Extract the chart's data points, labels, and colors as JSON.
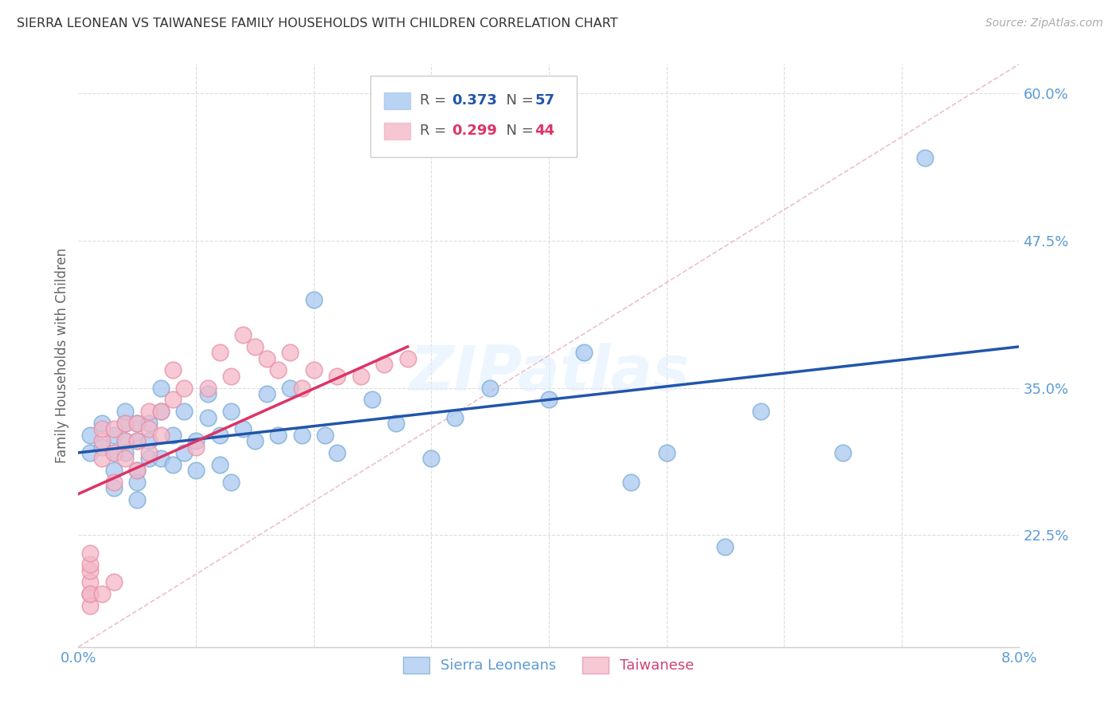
{
  "title": "SIERRA LEONEAN VS TAIWANESE FAMILY HOUSEHOLDS WITH CHILDREN CORRELATION CHART",
  "source": "Source: ZipAtlas.com",
  "ylabel": "Family Households with Children",
  "xlim": [
    0.0,
    0.08
  ],
  "ylim": [
    0.13,
    0.625
  ],
  "yticks_right": [
    0.225,
    0.35,
    0.475,
    0.6
  ],
  "ytick_labels_right": [
    "22.5%",
    "35.0%",
    "47.5%",
    "60.0%"
  ],
  "axis_color": "#5b9bd5",
  "blue_color": "#a8c8f0",
  "pink_color": "#f4b8c8",
  "blue_edge_color": "#7badd4",
  "pink_edge_color": "#e890a8",
  "blue_line_color": "#2255aa",
  "pink_line_color": "#dd3366",
  "grid_color": "#dddddd",
  "watermark": "ZIPatlas",
  "sierra_x": [
    0.001,
    0.001,
    0.002,
    0.002,
    0.003,
    0.003,
    0.003,
    0.003,
    0.004,
    0.004,
    0.004,
    0.004,
    0.005,
    0.005,
    0.005,
    0.005,
    0.005,
    0.006,
    0.006,
    0.006,
    0.007,
    0.007,
    0.007,
    0.008,
    0.008,
    0.009,
    0.009,
    0.01,
    0.01,
    0.011,
    0.011,
    0.012,
    0.012,
    0.013,
    0.013,
    0.014,
    0.015,
    0.016,
    0.017,
    0.018,
    0.019,
    0.02,
    0.021,
    0.022,
    0.025,
    0.027,
    0.03,
    0.032,
    0.035,
    0.04,
    0.043,
    0.047,
    0.05,
    0.055,
    0.058,
    0.065,
    0.072
  ],
  "sierra_y": [
    0.295,
    0.31,
    0.3,
    0.32,
    0.31,
    0.295,
    0.28,
    0.265,
    0.305,
    0.32,
    0.33,
    0.295,
    0.305,
    0.32,
    0.28,
    0.27,
    0.255,
    0.305,
    0.32,
    0.29,
    0.33,
    0.35,
    0.29,
    0.31,
    0.285,
    0.33,
    0.295,
    0.305,
    0.28,
    0.325,
    0.345,
    0.31,
    0.285,
    0.33,
    0.27,
    0.315,
    0.305,
    0.345,
    0.31,
    0.35,
    0.31,
    0.425,
    0.31,
    0.295,
    0.34,
    0.32,
    0.29,
    0.325,
    0.35,
    0.34,
    0.38,
    0.27,
    0.295,
    0.215,
    0.33,
    0.295,
    0.545
  ],
  "taiwanese_x": [
    0.001,
    0.001,
    0.001,
    0.001,
    0.001,
    0.001,
    0.001,
    0.002,
    0.002,
    0.002,
    0.002,
    0.003,
    0.003,
    0.003,
    0.003,
    0.004,
    0.004,
    0.004,
    0.005,
    0.005,
    0.005,
    0.006,
    0.006,
    0.006,
    0.007,
    0.007,
    0.008,
    0.008,
    0.009,
    0.01,
    0.011,
    0.012,
    0.013,
    0.014,
    0.015,
    0.016,
    0.017,
    0.018,
    0.019,
    0.02,
    0.022,
    0.024,
    0.026,
    0.028
  ],
  "taiwanese_y": [
    0.175,
    0.185,
    0.195,
    0.165,
    0.2,
    0.175,
    0.21,
    0.29,
    0.305,
    0.315,
    0.175,
    0.295,
    0.315,
    0.27,
    0.185,
    0.305,
    0.32,
    0.29,
    0.305,
    0.32,
    0.28,
    0.315,
    0.33,
    0.295,
    0.33,
    0.31,
    0.34,
    0.365,
    0.35,
    0.3,
    0.35,
    0.38,
    0.36,
    0.395,
    0.385,
    0.375,
    0.365,
    0.38,
    0.35,
    0.365,
    0.36,
    0.36,
    0.37,
    0.375
  ],
  "blue_line_x": [
    0.0,
    0.08
  ],
  "blue_line_y": [
    0.295,
    0.385
  ],
  "pink_line_x": [
    0.0,
    0.028
  ],
  "pink_line_y": [
    0.26,
    0.385
  ]
}
